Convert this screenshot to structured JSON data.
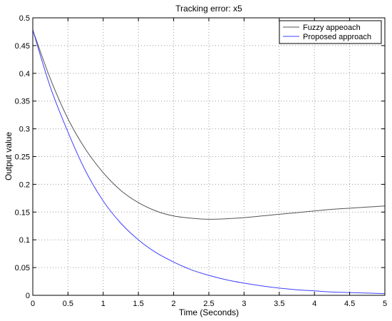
{
  "chart_data": {
    "type": "line",
    "title": "Tracking error: x5",
    "xlabel": "Time (Seconds)",
    "ylabel": "Output value",
    "xlim": [
      0,
      5
    ],
    "ylim": [
      0,
      0.5
    ],
    "xticks": [
      "0",
      "0.5",
      "1",
      "1.5",
      "2",
      "2.5",
      "3",
      "3.5",
      "4",
      "4.5",
      "5"
    ],
    "yticks": [
      "0",
      "0.05",
      "0.1",
      "0.15",
      "0.2",
      "0.25",
      "0.3",
      "0.35",
      "0.4",
      "0.45",
      "0.5"
    ],
    "grid": true,
    "legend_position": "top-right",
    "series": [
      {
        "name": "Fuzzy appeoach",
        "color": "#555555",
        "x": [
          0,
          0.25,
          0.5,
          0.75,
          1,
          1.25,
          1.5,
          1.75,
          2,
          2.25,
          2.5,
          2.75,
          3,
          3.25,
          3.5,
          3.75,
          4,
          4.25,
          4.5,
          4.75,
          5
        ],
        "y": [
          0.478,
          0.39,
          0.318,
          0.263,
          0.221,
          0.189,
          0.167,
          0.152,
          0.143,
          0.139,
          0.137,
          0.138,
          0.14,
          0.143,
          0.146,
          0.149,
          0.152,
          0.155,
          0.157,
          0.159,
          0.161
        ]
      },
      {
        "name": "Proposed approach",
        "color": "#4040ff",
        "x": [
          0,
          0.25,
          0.5,
          0.75,
          1,
          1.25,
          1.5,
          1.75,
          2,
          2.25,
          2.5,
          2.75,
          3,
          3.25,
          3.5,
          3.75,
          4,
          4.25,
          4.5,
          4.75,
          5
        ],
        "y": [
          0.478,
          0.375,
          0.294,
          0.224,
          0.17,
          0.13,
          0.1,
          0.077,
          0.06,
          0.046,
          0.036,
          0.028,
          0.022,
          0.017,
          0.013,
          0.01,
          0.008,
          0.006,
          0.005,
          0.004,
          0.003
        ]
      }
    ]
  }
}
